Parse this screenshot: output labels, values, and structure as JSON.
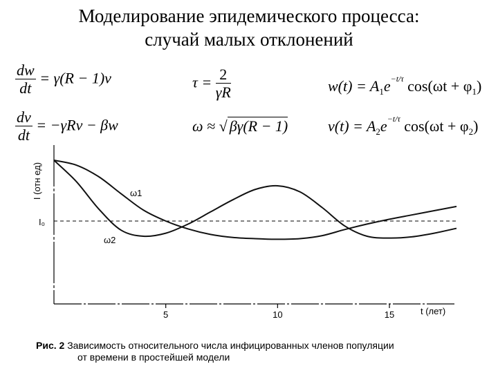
{
  "slide": {
    "title_line1": "Моделирование эпидемического процесса:",
    "title_line2": "случай малых отклонений"
  },
  "equations": {
    "dw_num": "dw",
    "dw_den": "dt",
    "dw_rhs": "= γ(R − 1)v",
    "dv_num": "dv",
    "dv_den": "dt",
    "dv_rhs": "= −γRv − βw",
    "tau_lhs": "τ =",
    "tau_num": "2",
    "tau_den": "γR",
    "omega_lhs": "ω ≈",
    "omega_sqrt": "βγ(R − 1)",
    "w_lhs": "w(t) = A",
    "w_sub": "1",
    "w_e": "e",
    "w_exp": "−t/τ",
    "w_cos": "cos(ωt + φ",
    "w_phi_sub": "1",
    "w_close": ")",
    "v_lhs": "v(t) = A",
    "v_sub": "2",
    "v_e": "e",
    "v_exp": "−t/τ",
    "v_cos": "cos(ωt + φ",
    "v_phi_sub": "2",
    "v_close": ")"
  },
  "chart_data": {
    "type": "line",
    "ylabel": "I (отн ед)",
    "xlabel": "t (лет)",
    "x_ticks": [
      "5",
      "10",
      "15"
    ],
    "reference_label": "I₀",
    "xlim": [
      0,
      18
    ],
    "series": [
      {
        "name": "ω1",
        "x": [
          0,
          1,
          2,
          3,
          4,
          5,
          6,
          7,
          8,
          9,
          10,
          11,
          12,
          13,
          14,
          15,
          16,
          17,
          18
        ],
        "y": [
          1.0,
          0.92,
          0.73,
          0.45,
          0.18,
          0.0,
          -0.13,
          -0.22,
          -0.27,
          -0.29,
          -0.3,
          -0.29,
          -0.24,
          -0.14,
          -0.05,
          0.03,
          0.1,
          0.17,
          0.24
        ]
      },
      {
        "name": "ω2",
        "x": [
          0,
          1,
          2,
          3,
          4,
          5,
          6,
          7,
          8,
          9,
          10,
          11,
          12,
          13,
          14,
          15,
          16,
          17,
          18
        ],
        "y": [
          1.0,
          0.65,
          0.2,
          -0.15,
          -0.25,
          -0.2,
          -0.05,
          0.15,
          0.35,
          0.52,
          0.58,
          0.48,
          0.22,
          -0.08,
          -0.25,
          -0.28,
          -0.26,
          -0.2,
          -0.12
        ]
      }
    ],
    "reference_value": 0
  },
  "caption": {
    "label": "Рис. 2",
    "text_line1": "Зависимость относительного числа инфицированных членов популяции",
    "text_line2": "от времени в простейшей модели"
  }
}
